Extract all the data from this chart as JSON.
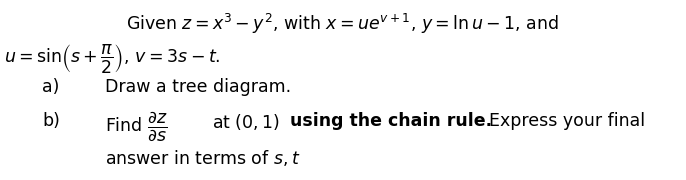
{
  "bg_color": "#ffffff",
  "line1": "Given $z = x^3 - y^2$, with $x = ue^{v+1}$, $y = \\ln u - 1$, and",
  "line2": "$u = \\sin\\!\\left(s + \\dfrac{\\pi}{2}\\right),\\, v = 3s - t.$",
  "line3_label": "a)",
  "line3_text": "Draw a tree diagram.",
  "line4_label": "b)",
  "line4_find": "Find $\\dfrac{\\partial z}{\\partial s}$",
  "line4_at": "at $(0,1)$",
  "line4_bold": "using the chain rule.",
  "line4_rest": "  Express your final",
  "line5": "answer in terms of $s, t$",
  "font_size": 12.5
}
